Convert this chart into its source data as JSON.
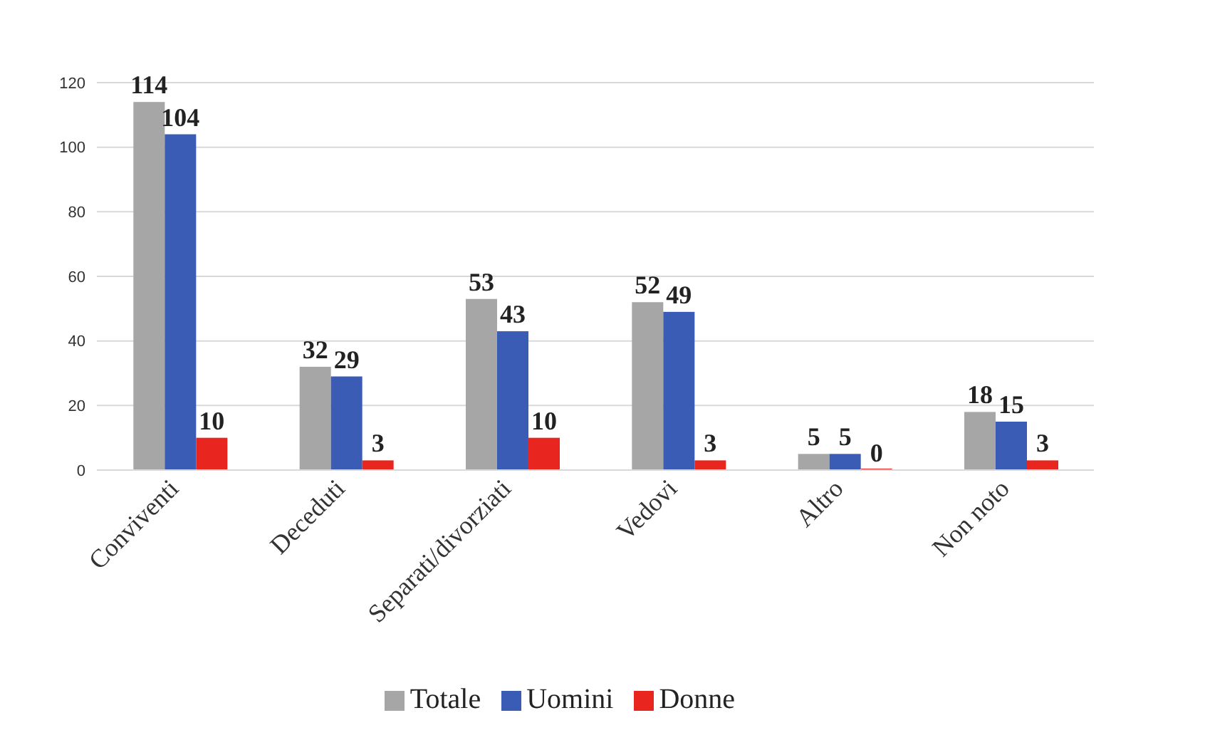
{
  "chart_data": {
    "type": "bar",
    "categories": [
      "Conviventi",
      "Deceduti",
      "Separati/divorziati",
      "Vedovi",
      "Altro",
      "Non noto"
    ],
    "series": [
      {
        "name": "Totale",
        "color": "#a6a6a6",
        "values": [
          114,
          32,
          53,
          52,
          5,
          18
        ]
      },
      {
        "name": "Uomini",
        "color": "#3a5cb5",
        "values": [
          104,
          29,
          43,
          49,
          5,
          15
        ]
      },
      {
        "name": "Donne",
        "color": "#e8261f",
        "values": [
          10,
          3,
          10,
          3,
          0,
          3
        ]
      }
    ],
    "ylim": [
      0,
      120
    ],
    "yticks": [
      0,
      20,
      40,
      60,
      80,
      100,
      120
    ],
    "grid": "y",
    "legend": "bottom",
    "data_labels": true
  }
}
